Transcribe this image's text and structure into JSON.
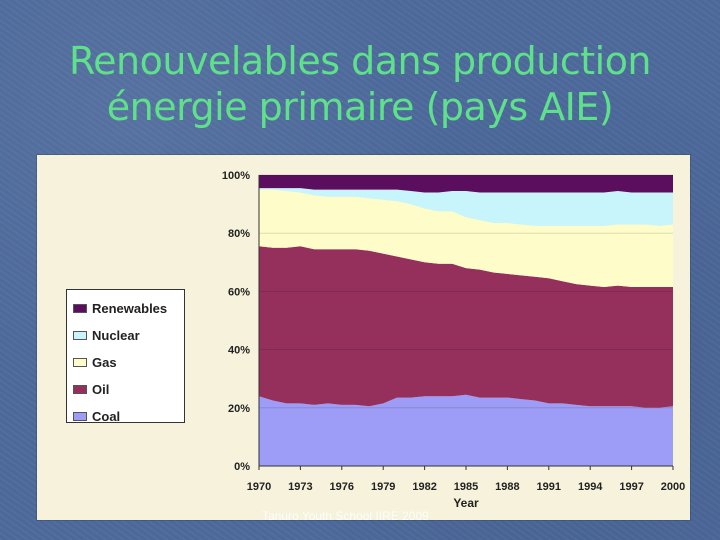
{
  "slide": {
    "title_line1": "Renouvelables dans production",
    "title_line2": "énergie primaire (pays AIE)",
    "watermark": "Tanuro Youth School IIRE 2009"
  },
  "colors": {
    "renewables": "#5b0e5e",
    "nuclear": "#c8f4fb",
    "gas": "#fefcc9",
    "oil": "#95305d",
    "coal": "#9d9cf6",
    "chart_bg": "#f6f2dc"
  },
  "chart_data": {
    "type": "area",
    "stacked": true,
    "xlabel": "Year",
    "ylabel": "",
    "x": [
      1970,
      1971,
      1972,
      1973,
      1974,
      1975,
      1976,
      1977,
      1978,
      1979,
      1980,
      1981,
      1982,
      1983,
      1984,
      1985,
      1986,
      1987,
      1988,
      1989,
      1990,
      1991,
      1992,
      1993,
      1994,
      1995,
      1996,
      1997,
      1998,
      1999,
      2000
    ],
    "x_ticks": [
      "1970",
      "1973",
      "1976",
      "1979",
      "1982",
      "1985",
      "1988",
      "1991",
      "1994",
      "1997",
      "2000"
    ],
    "y_ticks": [
      "0%",
      "20%",
      "40%",
      "60%",
      "80%",
      "100%"
    ],
    "ylim": [
      0,
      100
    ],
    "legend_position": "left",
    "series": [
      {
        "name": "Coal",
        "color_key": "coal",
        "values": [
          24.0,
          22.5,
          21.5,
          21.5,
          21.0,
          21.5,
          21.0,
          21.0,
          20.5,
          21.5,
          23.5,
          23.5,
          24.0,
          24.0,
          24.0,
          24.5,
          23.5,
          23.5,
          23.5,
          23.0,
          22.5,
          21.5,
          21.5,
          21.0,
          20.5,
          20.5,
          20.5,
          20.5,
          20.0,
          20.0,
          20.5
        ]
      },
      {
        "name": "Oil",
        "color_key": "oil",
        "values": [
          51.5,
          52.5,
          53.5,
          54.0,
          53.5,
          53.0,
          53.5,
          53.5,
          53.5,
          51.5,
          48.5,
          47.5,
          46.0,
          45.5,
          45.5,
          43.5,
          44.0,
          43.0,
          42.5,
          42.5,
          42.5,
          43.0,
          42.0,
          41.5,
          41.5,
          41.0,
          41.5,
          41.0,
          41.5,
          41.5,
          41.0
        ]
      },
      {
        "name": "Gas",
        "color_key": "gas",
        "values": [
          19.5,
          20.0,
          19.5,
          18.5,
          18.5,
          18.0,
          18.0,
          18.0,
          18.0,
          18.5,
          19.0,
          19.0,
          18.5,
          18.0,
          18.0,
          17.5,
          17.0,
          17.0,
          17.5,
          17.5,
          17.5,
          18.0,
          19.0,
          20.0,
          20.5,
          21.0,
          21.0,
          21.5,
          21.5,
          21.0,
          21.5
        ]
      },
      {
        "name": "Nuclear",
        "color_key": "nuclear",
        "values": [
          0.5,
          0.5,
          1.0,
          1.5,
          2.0,
          2.5,
          2.5,
          2.5,
          3.0,
          3.5,
          4.0,
          4.5,
          5.5,
          6.5,
          7.0,
          9.0,
          9.5,
          10.5,
          10.5,
          11.0,
          11.5,
          11.5,
          11.5,
          11.5,
          11.5,
          11.5,
          11.5,
          11.0,
          11.0,
          11.5,
          11.0
        ]
      },
      {
        "name": "Renewables",
        "color_key": "renewables",
        "values": [
          4.5,
          4.5,
          4.5,
          4.5,
          5.0,
          5.0,
          5.0,
          5.0,
          5.0,
          5.0,
          5.0,
          5.5,
          6.0,
          6.0,
          5.5,
          5.5,
          6.0,
          6.0,
          6.0,
          6.0,
          6.0,
          6.0,
          6.0,
          6.0,
          6.0,
          6.0,
          5.5,
          6.0,
          6.0,
          6.0,
          6.0
        ]
      }
    ],
    "legend_order": [
      "Renewables",
      "Nuclear",
      "Gas",
      "Oil",
      "Coal"
    ]
  }
}
